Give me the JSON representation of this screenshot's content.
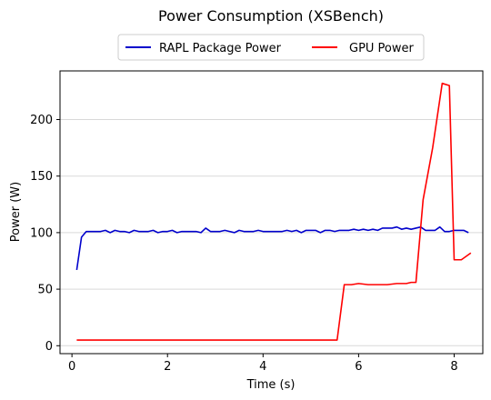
{
  "chart_data": {
    "type": "line",
    "title": "Power Consumption (XSBench)",
    "xlabel": "Time (s)",
    "ylabel": "Power (W)",
    "xlim": [
      -0.25,
      8.6
    ],
    "ylim": [
      -7,
      243
    ],
    "xticks": [
      0,
      2,
      4,
      6,
      8
    ],
    "yticks": [
      0,
      50,
      100,
      150,
      200
    ],
    "xtick_labels": [
      "0",
      "2",
      "4",
      "6",
      "8"
    ],
    "ytick_labels": [
      "0",
      "50",
      "100",
      "150",
      "200"
    ],
    "grid": "horizontal",
    "legend_position": "top-center",
    "series": [
      {
        "name": "RAPL Package Power",
        "color": "#0000cc",
        "x": [
          0.1,
          0.2,
          0.3,
          0.4,
          0.5,
          0.6,
          0.7,
          0.8,
          0.9,
          1.0,
          1.1,
          1.2,
          1.3,
          1.4,
          1.5,
          1.6,
          1.7,
          1.8,
          1.9,
          2.0,
          2.1,
          2.2,
          2.3,
          2.4,
          2.5,
          2.6,
          2.7,
          2.8,
          2.9,
          3.0,
          3.1,
          3.2,
          3.3,
          3.4,
          3.5,
          3.6,
          3.7,
          3.8,
          3.9,
          4.0,
          4.1,
          4.2,
          4.3,
          4.4,
          4.5,
          4.6,
          4.7,
          4.8,
          4.9,
          5.0,
          5.1,
          5.2,
          5.3,
          5.4,
          5.5,
          5.6,
          5.7,
          5.8,
          5.9,
          6.0,
          6.1,
          6.2,
          6.3,
          6.4,
          6.5,
          6.6,
          6.7,
          6.8,
          6.9,
          7.0,
          7.1,
          7.2,
          7.3,
          7.4,
          7.5,
          7.6,
          7.7,
          7.8,
          7.9,
          8.0,
          8.1,
          8.2,
          8.3
        ],
        "values": [
          67,
          96,
          101,
          101,
          101,
          101,
          102,
          100,
          102,
          101,
          101,
          100,
          102,
          101,
          101,
          101,
          102,
          100,
          101,
          101,
          102,
          100,
          101,
          101,
          101,
          101,
          100,
          104,
          101,
          101,
          101,
          102,
          101,
          100,
          102,
          101,
          101,
          101,
          102,
          101,
          101,
          101,
          101,
          101,
          102,
          101,
          102,
          100,
          102,
          102,
          102,
          100,
          102,
          102,
          101,
          102,
          102,
          102,
          103,
          102,
          103,
          102,
          103,
          102,
          104,
          104,
          104,
          105,
          103,
          104,
          103,
          104,
          105,
          102,
          102,
          102,
          105,
          101,
          101,
          102,
          102,
          102,
          100
        ]
      },
      {
        "name": "GPU Power",
        "color": "#ff0000",
        "x": [
          0.1,
          0.2,
          0.3,
          0.4,
          0.5,
          0.6,
          0.7,
          0.8,
          0.9,
          1.0,
          1.2,
          1.4,
          1.6,
          1.8,
          2.0,
          2.2,
          2.4,
          2.6,
          2.8,
          3.0,
          3.2,
          3.4,
          3.6,
          3.8,
          4.0,
          4.2,
          4.4,
          4.6,
          4.8,
          5.0,
          5.2,
          5.4,
          5.55,
          5.7,
          5.85,
          6.0,
          6.2,
          6.4,
          6.6,
          6.8,
          7.0,
          7.1,
          7.2,
          7.35,
          7.55,
          7.75,
          7.9,
          8.0,
          8.15,
          8.35
        ],
        "values": [
          5,
          5,
          5,
          5,
          5,
          5,
          5,
          5,
          5,
          5,
          5,
          5,
          5,
          5,
          5,
          5,
          5,
          5,
          5,
          5,
          5,
          5,
          5,
          5,
          5,
          5,
          5,
          5,
          5,
          5,
          5,
          5,
          5,
          54,
          54,
          55,
          54,
          54,
          54,
          55,
          55,
          56,
          56,
          129,
          175,
          232,
          230,
          76,
          76,
          82
        ]
      }
    ]
  }
}
